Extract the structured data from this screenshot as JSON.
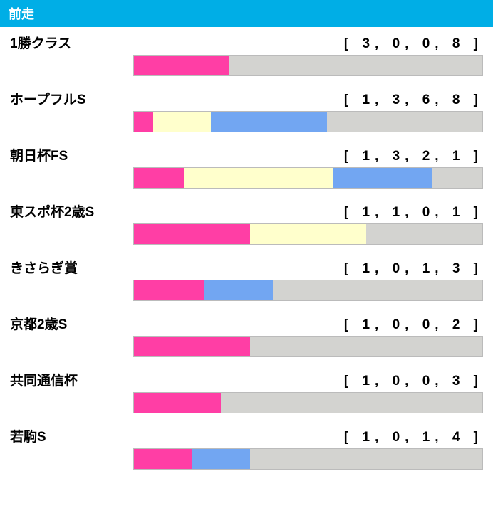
{
  "header": {
    "title": "前走",
    "bg": "#00aee6",
    "color": "#ffffff"
  },
  "colors": {
    "seg1": "#ff3ea5",
    "seg2": "#ffffcc",
    "seg3": "#72a6f2",
    "seg4": "#d3d3d0"
  },
  "bar_indent_pct": 26,
  "rows": [
    {
      "label": "1勝クラス",
      "values": [
        3,
        0,
        0,
        8
      ]
    },
    {
      "label": "ホープフルS",
      "values": [
        1,
        3,
        6,
        8
      ]
    },
    {
      "label": "朝日杯FS",
      "values": [
        1,
        3,
        2,
        1
      ]
    },
    {
      "label": "東スポ杯2歳S",
      "values": [
        1,
        1,
        0,
        1
      ]
    },
    {
      "label": "きさらぎ賞",
      "values": [
        1,
        0,
        1,
        3
      ]
    },
    {
      "label": "京都2歳S",
      "values": [
        1,
        0,
        0,
        2
      ]
    },
    {
      "label": "共同通信杯",
      "values": [
        1,
        0,
        0,
        3
      ]
    },
    {
      "label": "若駒S",
      "values": [
        1,
        0,
        1,
        4
      ]
    }
  ]
}
